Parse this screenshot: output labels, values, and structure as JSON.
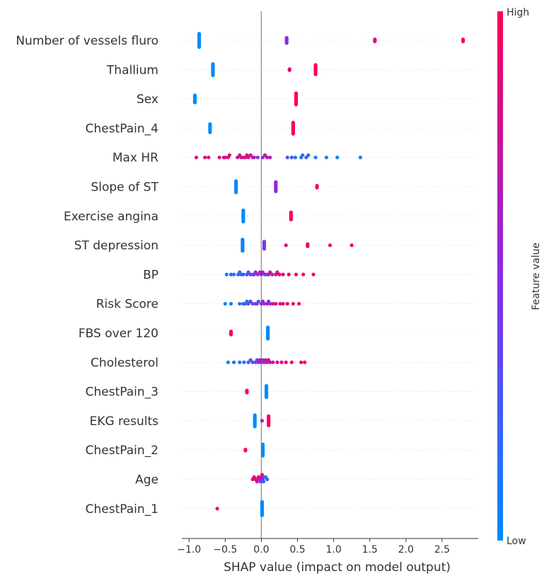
{
  "chart_data": {
    "type": "scatter",
    "subtype": "shap-beeswarm",
    "title": "",
    "xlabel": "SHAP value (impact on model output)",
    "ylabel": "",
    "xlim": [
      -1.1,
      3.0
    ],
    "xticks": [
      -1.0,
      -0.5,
      0.0,
      0.5,
      1.0,
      1.5,
      2.0,
      2.5
    ],
    "xtick_labels": [
      "−1.0",
      "−0.5",
      "0.0",
      "0.5",
      "1.0",
      "1.5",
      "2.0",
      "2.5"
    ],
    "grid": false,
    "colorbar": {
      "label": "Feature value",
      "high_label": "High",
      "low_label": "Low",
      "high_color": "#ff0052",
      "mid_color": "#8a2be2",
      "low_color": "#008bfb",
      "position": "right"
    },
    "features": [
      {
        "name": "Number of vessels fluro",
        "points": [
          {
            "x": -0.86,
            "c": 0,
            "n": 14
          },
          {
            "x": 0.35,
            "c": 0.5,
            "n": 6
          },
          {
            "x": 1.57,
            "c": 0.85,
            "n": 3
          },
          {
            "x": 2.79,
            "c": 1,
            "n": 3
          }
        ]
      },
      {
        "name": "Thallium",
        "points": [
          {
            "x": -0.67,
            "c": 0,
            "n": 12
          },
          {
            "x": 0.39,
            "c": 0.85,
            "n": 2
          },
          {
            "x": 0.75,
            "c": 1,
            "n": 10
          }
        ]
      },
      {
        "name": "Sex",
        "points": [
          {
            "x": -0.92,
            "c": 0,
            "n": 8
          },
          {
            "x": 0.48,
            "c": 1,
            "n": 12
          }
        ]
      },
      {
        "name": "ChestPain_4",
        "points": [
          {
            "x": -0.71,
            "c": 0,
            "n": 9
          },
          {
            "x": 0.44,
            "c": 1,
            "n": 12
          }
        ]
      },
      {
        "name": "Max HR",
        "points": [
          {
            "x": -0.9,
            "c": 0.9
          },
          {
            "x": -0.78,
            "c": 0.85
          },
          {
            "x": -0.73,
            "c": 0.85
          },
          {
            "x": -0.58,
            "c": 0.85
          },
          {
            "x": -0.52,
            "c": 0.85
          },
          {
            "x": -0.46,
            "c": 0.8
          },
          {
            "x": -0.5,
            "c": 0.85
          },
          {
            "x": -0.44,
            "c": 0.9
          },
          {
            "x": -0.33,
            "c": 0.7
          },
          {
            "x": -0.28,
            "c": 0.75
          },
          {
            "x": -0.22,
            "c": 0.8
          },
          {
            "x": -0.18,
            "c": 0.85
          },
          {
            "x": -0.3,
            "c": 0.8
          },
          {
            "x": -0.25,
            "c": 0.85
          },
          {
            "x": -0.12,
            "c": 0.6
          },
          {
            "x": -0.05,
            "c": 0.5
          },
          {
            "x": 0.02,
            "c": 0.5
          },
          {
            "x": -0.15,
            "c": 0.75
          },
          {
            "x": -0.2,
            "c": 0.85
          },
          {
            "x": 0.08,
            "c": 0.6
          },
          {
            "x": 0.12,
            "c": 0.7
          },
          {
            "x": -0.1,
            "c": 0.7
          },
          {
            "x": 0.05,
            "c": 0.8
          },
          {
            "x": 0.36,
            "c": 0.3
          },
          {
            "x": 0.42,
            "c": 0.25
          },
          {
            "x": 0.55,
            "c": 0.2
          },
          {
            "x": 0.62,
            "c": 0.15
          },
          {
            "x": 0.65,
            "c": 0.2
          },
          {
            "x": 0.75,
            "c": 0.1
          },
          {
            "x": 0.9,
            "c": 0.05
          },
          {
            "x": 1.05,
            "c": 0.05
          },
          {
            "x": 1.37,
            "c": 0.05
          },
          {
            "x": 0.47,
            "c": 0.1
          },
          {
            "x": 0.57,
            "c": 0.1
          }
        ]
      },
      {
        "name": "Slope of ST",
        "points": [
          {
            "x": -0.35,
            "c": 0,
            "n": 12
          },
          {
            "x": 0.2,
            "c": 0.55,
            "n": 10
          },
          {
            "x": 0.77,
            "c": 1,
            "n": 3
          }
        ]
      },
      {
        "name": "Exercise angina",
        "points": [
          {
            "x": -0.25,
            "c": 0,
            "n": 12
          },
          {
            "x": 0.41,
            "c": 1,
            "n": 8
          }
        ]
      },
      {
        "name": "ST depression",
        "points": [
          {
            "x": -0.26,
            "c": 0.05,
            "n": 12
          },
          {
            "x": 0.04,
            "c": 0.4,
            "n": 8
          },
          {
            "x": 0.34,
            "c": 0.8
          },
          {
            "x": 0.64,
            "c": 0.95,
            "n": 3
          },
          {
            "x": 0.95,
            "c": 1
          },
          {
            "x": 1.25,
            "c": 1
          }
        ]
      },
      {
        "name": "BP",
        "points": [
          {
            "x": -0.48,
            "c": 0.1
          },
          {
            "x": -0.42,
            "c": 0.2
          },
          {
            "x": -0.38,
            "c": 0.1
          },
          {
            "x": -0.32,
            "c": 0.25
          },
          {
            "x": -0.28,
            "c": 0.15
          },
          {
            "x": -0.25,
            "c": 0.3
          },
          {
            "x": -0.2,
            "c": 0.35
          },
          {
            "x": -0.15,
            "c": 0.4
          },
          {
            "x": -0.1,
            "c": 0.45
          },
          {
            "x": -0.05,
            "c": 0.5
          },
          {
            "x": 0.0,
            "c": 0.55
          },
          {
            "x": 0.05,
            "c": 0.6
          },
          {
            "x": 0.1,
            "c": 0.65
          },
          {
            "x": 0.15,
            "c": 0.7
          },
          {
            "x": 0.2,
            "c": 0.75
          },
          {
            "x": 0.25,
            "c": 0.8
          },
          {
            "x": 0.3,
            "c": 0.85
          },
          {
            "x": 0.38,
            "c": 0.9
          },
          {
            "x": 0.48,
            "c": 0.95
          },
          {
            "x": 0.58,
            "c": 1
          },
          {
            "x": 0.72,
            "c": 1
          },
          {
            "x": -0.3,
            "c": 0.1
          },
          {
            "x": -0.18,
            "c": 0.2
          },
          {
            "x": -0.12,
            "c": 0.3
          },
          {
            "x": 0.02,
            "c": 0.5
          },
          {
            "x": 0.08,
            "c": 0.4
          },
          {
            "x": 0.12,
            "c": 0.85
          },
          {
            "x": 0.22,
            "c": 0.9
          },
          {
            "x": -0.08,
            "c": 0.6
          },
          {
            "x": -0.02,
            "c": 0.7
          }
        ]
      },
      {
        "name": "Risk Score",
        "points": [
          {
            "x": -0.5,
            "c": 0.05
          },
          {
            "x": -0.42,
            "c": 0.1
          },
          {
            "x": -0.3,
            "c": 0.15
          },
          {
            "x": -0.22,
            "c": 0.2
          },
          {
            "x": -0.18,
            "c": 0.25
          },
          {
            "x": -0.12,
            "c": 0.3
          },
          {
            "x": -0.06,
            "c": 0.35
          },
          {
            "x": 0.0,
            "c": 0.45
          },
          {
            "x": 0.04,
            "c": 0.55
          },
          {
            "x": 0.08,
            "c": 0.65
          },
          {
            "x": 0.12,
            "c": 0.7
          },
          {
            "x": 0.16,
            "c": 0.75
          },
          {
            "x": 0.2,
            "c": 0.8
          },
          {
            "x": 0.26,
            "c": 0.85
          },
          {
            "x": 0.3,
            "c": 0.9
          },
          {
            "x": 0.36,
            "c": 0.95
          },
          {
            "x": 0.44,
            "c": 1
          },
          {
            "x": 0.52,
            "c": 1
          },
          {
            "x": -0.25,
            "c": 0.3
          },
          {
            "x": -0.15,
            "c": 0.4
          },
          {
            "x": -0.08,
            "c": 0.5
          },
          {
            "x": 0.02,
            "c": 0.6
          },
          {
            "x": -0.2,
            "c": 0.1
          },
          {
            "x": 0.1,
            "c": 0.45
          },
          {
            "x": -0.04,
            "c": 0.2
          }
        ]
      },
      {
        "name": "FBS over 120",
        "points": [
          {
            "x": -0.42,
            "c": 1,
            "n": 4
          },
          {
            "x": 0.09,
            "c": 0,
            "n": 12
          }
        ]
      },
      {
        "name": "Cholesterol",
        "points": [
          {
            "x": -0.46,
            "c": 0.05
          },
          {
            "x": -0.38,
            "c": 0.1
          },
          {
            "x": -0.3,
            "c": 0.15
          },
          {
            "x": -0.24,
            "c": 0.2
          },
          {
            "x": -0.18,
            "c": 0.25
          },
          {
            "x": -0.12,
            "c": 0.35
          },
          {
            "x": -0.08,
            "c": 0.4
          },
          {
            "x": -0.04,
            "c": 0.5
          },
          {
            "x": 0.0,
            "c": 0.55
          },
          {
            "x": 0.04,
            "c": 0.6
          },
          {
            "x": 0.08,
            "c": 0.65
          },
          {
            "x": 0.12,
            "c": 0.7
          },
          {
            "x": 0.16,
            "c": 0.75
          },
          {
            "x": 0.22,
            "c": 0.8
          },
          {
            "x": 0.28,
            "c": 0.85
          },
          {
            "x": 0.34,
            "c": 0.9
          },
          {
            "x": 0.42,
            "c": 0.95
          },
          {
            "x": 0.55,
            "c": 1
          },
          {
            "x": 0.6,
            "c": 1
          },
          {
            "x": -0.15,
            "c": 0.2
          },
          {
            "x": -0.06,
            "c": 0.3
          },
          {
            "x": 0.02,
            "c": 0.45
          },
          {
            "x": 0.06,
            "c": 0.7
          },
          {
            "x": -0.02,
            "c": 0.8
          },
          {
            "x": 0.1,
            "c": 0.9
          }
        ]
      },
      {
        "name": "ChestPain_3",
        "points": [
          {
            "x": -0.2,
            "c": 1,
            "n": 3
          },
          {
            "x": 0.07,
            "c": 0,
            "n": 12
          }
        ]
      },
      {
        "name": "EKG results",
        "points": [
          {
            "x": -0.09,
            "c": 0,
            "n": 12
          },
          {
            "x": 0.01,
            "c": 0.55
          },
          {
            "x": 0.1,
            "c": 1,
            "n": 10
          }
        ]
      },
      {
        "name": "ChestPain_2",
        "points": [
          {
            "x": -0.22,
            "c": 1,
            "n": 2
          },
          {
            "x": 0.02,
            "c": 0,
            "n": 12
          }
        ]
      },
      {
        "name": "Age",
        "points": [
          {
            "x": -0.12,
            "c": 0.9
          },
          {
            "x": -0.08,
            "c": 0.85
          },
          {
            "x": -0.05,
            "c": 0.8
          },
          {
            "x": -0.02,
            "c": 0.75
          },
          {
            "x": 0.0,
            "c": 0.6
          },
          {
            "x": 0.02,
            "c": 0.5
          },
          {
            "x": 0.05,
            "c": 0.3
          },
          {
            "x": 0.08,
            "c": 0.2
          },
          {
            "x": -0.04,
            "c": 0.9
          },
          {
            "x": -0.01,
            "c": 0.4
          },
          {
            "x": 0.03,
            "c": 0.2
          },
          {
            "x": -0.06,
            "c": 0.7
          },
          {
            "x": 0.06,
            "c": 0.1
          },
          {
            "x": -0.1,
            "c": 0.85
          },
          {
            "x": 0.01,
            "c": 0.95
          }
        ]
      },
      {
        "name": "ChestPain_1",
        "points": [
          {
            "x": -0.61,
            "c": 1
          },
          {
            "x": 0.01,
            "c": 0,
            "n": 14
          }
        ]
      }
    ]
  }
}
